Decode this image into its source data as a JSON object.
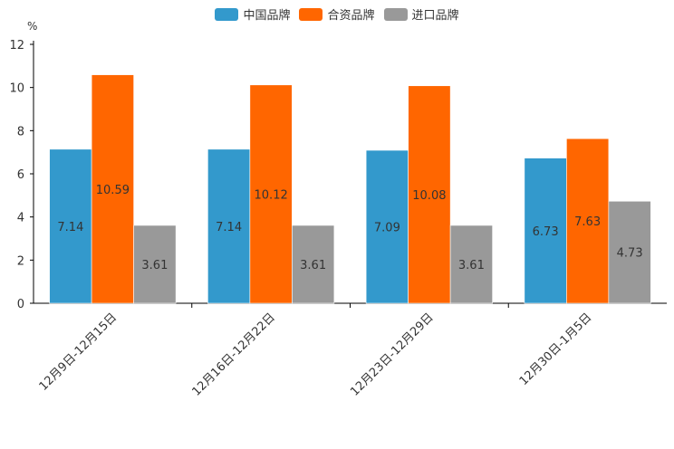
{
  "chart_data": {
    "type": "bar",
    "unit": "%",
    "categories": [
      "12月9日-12月15日",
      "12月16日-12月22日",
      "12月23日-12月29日",
      "12月30日-1月5日"
    ],
    "series": [
      {
        "name": "中国品牌",
        "color": "#3399cc",
        "values": [
          7.14,
          7.14,
          7.09,
          6.73
        ]
      },
      {
        "name": "合资品牌",
        "color": "#ff6600",
        "values": [
          10.59,
          10.12,
          10.08,
          7.63
        ]
      },
      {
        "name": "进口品牌",
        "color": "#999999",
        "values": [
          3.61,
          3.61,
          3.61,
          4.73
        ]
      }
    ],
    "y_ticks": [
      "0",
      "2",
      "4",
      "6",
      "8",
      "10",
      "12"
    ],
    "ylim": [
      0,
      12
    ],
    "data_labels": [
      [
        "7.14",
        "10.59",
        "3.61"
      ],
      [
        "7.14",
        "10.12",
        "3.61"
      ],
      [
        "7.09",
        "10.08",
        "3.61"
      ],
      [
        "6.73",
        "7.63",
        "4.73"
      ]
    ],
    "legend_position": "top-center",
    "grid": false
  }
}
